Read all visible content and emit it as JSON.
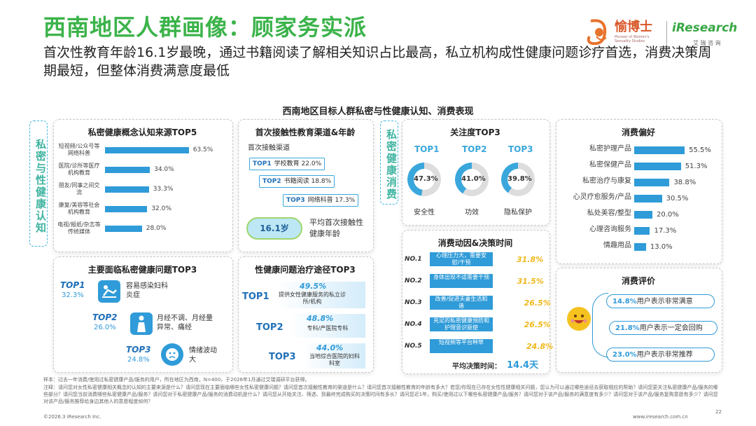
{
  "header": {
    "title": "西南地区人群画像：顾家务实派",
    "subtitle": "首次性教育年龄16.1岁最晚，通过书籍阅读了解相关知识占比最高，私立机构成性健康问题诊疗首选，消费决策周期最短，但整体消费满意度最低",
    "logo_yu": "愉博士",
    "logo_yu_sub": "Pioneer of Women's Sexuality Studies",
    "logo_ir": "iResearch",
    "logo_ir_sub": "艾 瑞 咨 询"
  },
  "section_title": "西南地区目标人群私密与性健康认知、消费表现",
  "side_labels": {
    "cognition": "私密与性健康认知",
    "consumption": "私密健康消费"
  },
  "colors": {
    "green": "#3bb34a",
    "blue": "#2f9bd8",
    "gold": "#f0b81a"
  },
  "panels": {
    "sources": "私密健康概念认知来源TOP5",
    "first_edu": "首次接触性教育渠道&年龄",
    "focus": "关注度TOP3",
    "preference": "消费偏好",
    "problems": "主要面临私密健康问题TOP3",
    "treatment": "性健康问题治疗途径TOP3",
    "motive": "消费动因&决策时间",
    "evaluation": "消费评价"
  },
  "chart_data": [
    {
      "type": "bar",
      "title": "私密健康概念认知来源TOP5",
      "categories": [
        "短视频/公众号等网络科普",
        "医院/诊所等医疗机构教育",
        "朋友/同事之间交流",
        "康复/美容等社会机构教育",
        "电视/报纸/杂志等传统媒体"
      ],
      "values": [
        63.5,
        34.0,
        33.3,
        32.0,
        28.0
      ],
      "value_labels": [
        "63.5%",
        "34.0%",
        "33.3%",
        "32.0%",
        "28.0%"
      ],
      "xlabel": "",
      "ylabel": "",
      "xlim": [
        0,
        70
      ]
    },
    {
      "type": "bar",
      "title": "消费偏好",
      "categories": [
        "私密护理产品",
        "私密保健产品",
        "私密治疗与康复",
        "心灵疗愈服务/产品",
        "私处美容/整型",
        "心理咨询服务",
        "情趣用品"
      ],
      "values": [
        55.5,
        51.3,
        38.8,
        30.5,
        20.0,
        17.3,
        13.0
      ],
      "value_labels": [
        "55.5%",
        "51.3%",
        "38.8%",
        "30.5%",
        "20.0%",
        "17.3%",
        "13.0%"
      ],
      "xlabel": "",
      "ylabel": "",
      "xlim": [
        0,
        60
      ]
    },
    {
      "type": "pie",
      "title": "关注度TOP3",
      "categories": [
        "安全性",
        "功效",
        "隐私保护"
      ],
      "ranks": [
        "TOP1",
        "TOP2",
        "TOP3"
      ],
      "values": [
        47.3,
        41.0,
        39.8
      ],
      "value_labels": [
        "47.3%",
        "41.0%",
        "39.8%"
      ]
    },
    {
      "type": "bar",
      "title": "消费动因&决策时间",
      "categories": [
        "心理压力大，需要安慰/干预",
        "身体出现不适需要干预",
        "改善/促进夫妻生活和谐",
        "充足的私密健康预防和护理意识驱使",
        "短视频等平台种草"
      ],
      "ranks": [
        "NO.1",
        "NO.2",
        "NO.3",
        "NO.4",
        "NO.5"
      ],
      "values": [
        31.8,
        31.5,
        26.5,
        26.5,
        24.8
      ],
      "value_labels": [
        "31.8%",
        "31.5%",
        "26.5%",
        "26.5%",
        "24.8%"
      ]
    }
  ],
  "first_edu": {
    "heading": "首次接触渠道",
    "channels": [
      {
        "rank": "TOP1",
        "name": "学校教育",
        "value": "22.0%"
      },
      {
        "rank": "TOP2",
        "name": "书籍阅读",
        "value": "18.8%"
      },
      {
        "rank": "TOP3",
        "name": "网络科普",
        "value": "17.3%"
      }
    ],
    "age": "16.1岁",
    "age_label": "平均首次接触性健康年龄"
  },
  "problems": [
    {
      "rank": "TOP1",
      "value": "32.3%",
      "label": "容易感染妇科炎症"
    },
    {
      "rank": "TOP2",
      "value": "26.0%",
      "label": "月经不调、月经量异常、痛经"
    },
    {
      "rank": "TOP3",
      "value": "24.8%",
      "label": "情绪波动大"
    }
  ],
  "treatment": [
    {
      "rank": "TOP1",
      "value": "49.5%",
      "label": "提供女性健康服务的私立诊所/机构"
    },
    {
      "rank": "TOP2",
      "value": "48.8%",
      "label": "专科/产医院专科"
    },
    {
      "rank": "TOP3",
      "value": "44.0%",
      "label": "当地综合医院的妇科科室"
    }
  ],
  "decision": {
    "label": "平均决策时间：",
    "value": "14.4天"
  },
  "evaluation": [
    {
      "value": "14.8%",
      "text": "用户表示非常满意"
    },
    {
      "value": "21.8%",
      "text": "用户表示一定会回购"
    },
    {
      "value": "23.0%",
      "text": "用户表示非常推荐"
    }
  ],
  "footer": {
    "sample": "样本：过去一年消费/使用过私密健康产品/服务的用户，所在地区为西南，N=400，于2026年1月通过艾瑞调研平台获得。",
    "notes": "注释：请问您对女性私密健康相关概念的认知的主要来源是什么？请问您现在主要面临哪些女性私密健康问题？请问您首次接触性教育的渠道是什么？请问您首次接触性教育的年龄有多大？若您/你现在已存在女性性健康相关问题，您认为可以通过哪些途径去获取相应的帮助？请问您更关注私密健康产品/服务的哪些部分？请问您当前消费哪些私密健康产品/服务？请问您对于私密健康产品/服务的消费动机是什么？请问您从开始关注、筛选、到最终完成购买的决策时间有多长？请问您近1年，购买/使用过以下哪些私密健康产品/服务？请问您对于该产品/服务的满意度有多少？请问您对于该产品/服务复购意愿有多少？请问您对该产品/服务推荐给身边其他人的意愿程度如何？",
    "copyright": "©2026.3 iResearch Inc.",
    "site": "www.iresearch.com.cn",
    "page": "22"
  }
}
